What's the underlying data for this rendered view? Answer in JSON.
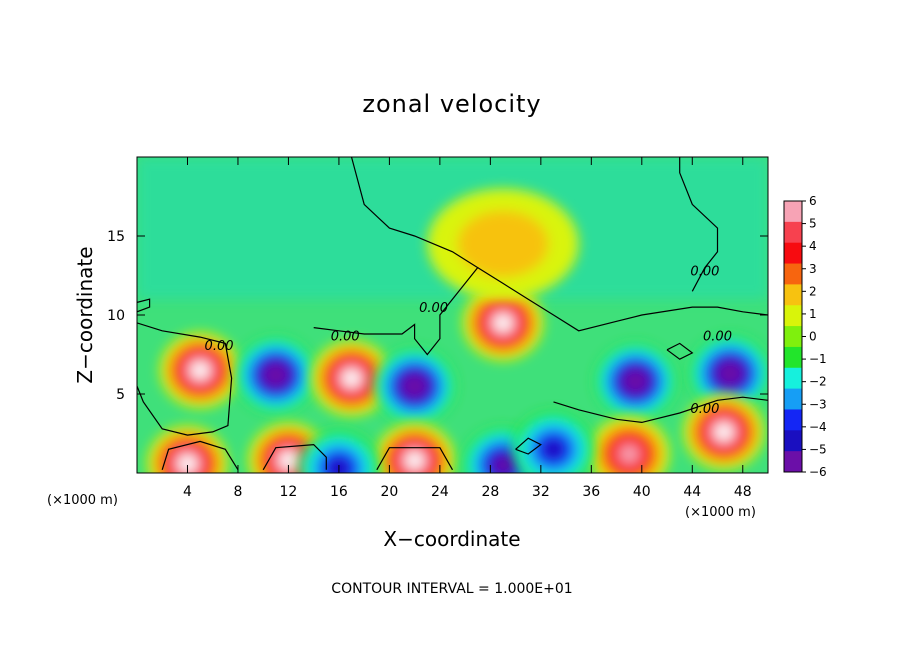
{
  "chart_data": {
    "type": "heatmap",
    "title": "zonal velocity",
    "xlabel": "X−coordinate",
    "ylabel": "Z−coordinate",
    "x_unit_left": "(×1000 m)",
    "x_unit_right": "(×1000 m)",
    "footer": "CONTOUR INTERVAL = 1.000E+01",
    "xlim": [
      0,
      50
    ],
    "ylim": [
      0,
      20
    ],
    "x_ticks": [
      4,
      8,
      12,
      16,
      20,
      24,
      28,
      32,
      36,
      40,
      44,
      48
    ],
    "y_ticks": [
      5,
      10,
      15
    ],
    "colorbar": {
      "levels": [
        6,
        5,
        4,
        3,
        2,
        1,
        0,
        -1,
        -2,
        -3,
        -4,
        -5,
        -6
      ],
      "labels": [
        "6",
        "5",
        "4",
        "3",
        "2",
        "1",
        "0",
        "−1",
        "−2",
        "−3",
        "−4",
        "−5",
        "−6"
      ],
      "colors": [
        "#f7a3b5",
        "#f7414f",
        "#f70b10",
        "#f7650f",
        "#f7c210",
        "#d9f40a",
        "#7ff00d",
        "#22e52b",
        "#16f0dd",
        "#169ef5",
        "#1426f5",
        "#1a0fc0",
        "#6b0fa8"
      ]
    },
    "contour_labels": [
      "0.00",
      "0.00",
      "0.00",
      "0.00",
      "0.00",
      "0.00"
    ],
    "blobs": [
      {
        "x": 5,
        "z": 6.5,
        "v": 7
      },
      {
        "x": 11,
        "z": 6.2,
        "v": -7
      },
      {
        "x": 17,
        "z": 6.0,
        "v": 7
      },
      {
        "x": 22,
        "z": 5.5,
        "v": -7
      },
      {
        "x": 29,
        "z": 9.5,
        "v": 7
      },
      {
        "x": 39.5,
        "z": 5.8,
        "v": -7
      },
      {
        "x": 47,
        "z": 6.3,
        "v": -7
      },
      {
        "x": 46.5,
        "z": 2.6,
        "v": 7
      },
      {
        "x": 4,
        "z": 0.6,
        "v": 7
      },
      {
        "x": 12,
        "z": 0.8,
        "v": 7
      },
      {
        "x": 22,
        "z": 0.8,
        "v": 7
      },
      {
        "x": 29,
        "z": 0.5,
        "v": -6
      },
      {
        "x": 39,
        "z": 1.2,
        "v": 6
      },
      {
        "x": 16,
        "z": 0.3,
        "v": -5
      },
      {
        "x": 33,
        "z": 1.5,
        "v": -5
      },
      {
        "x": 29,
        "z": 14.5,
        "v": 2
      }
    ]
  }
}
